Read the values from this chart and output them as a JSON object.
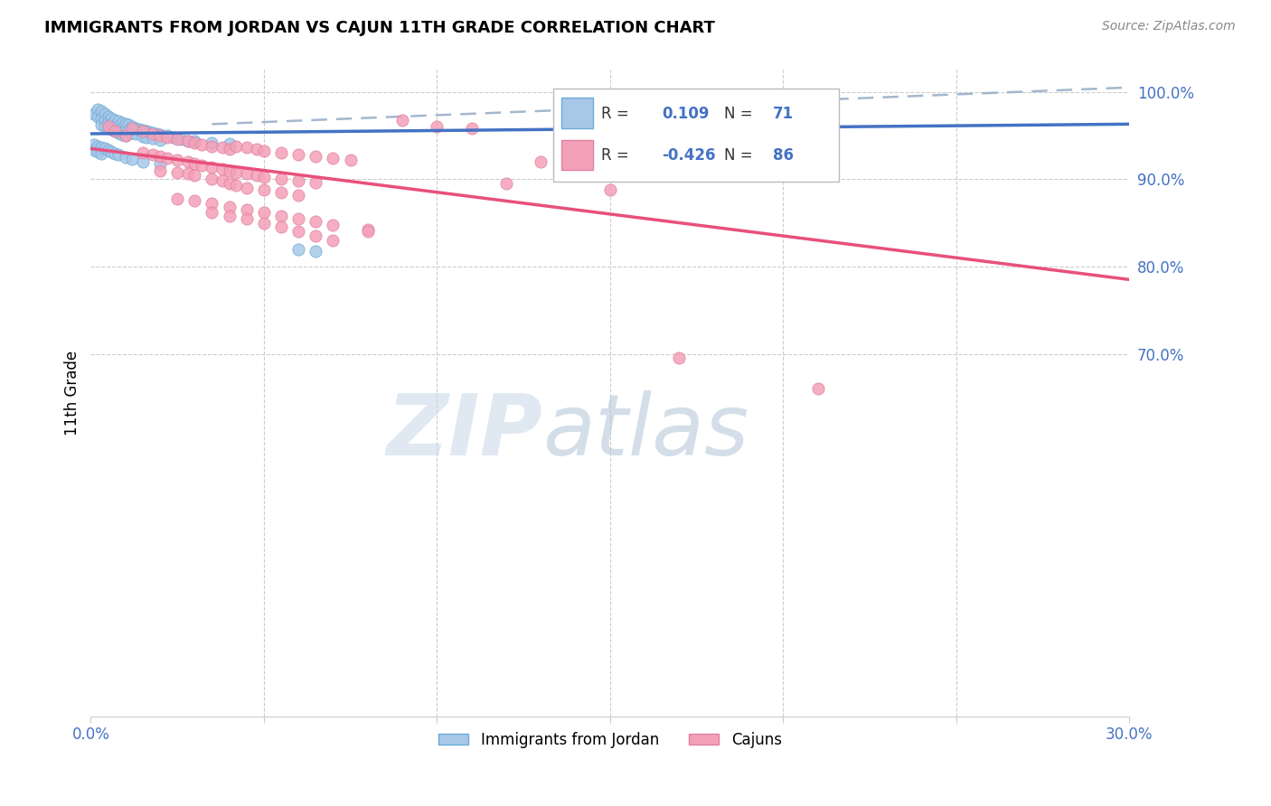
{
  "title": "IMMIGRANTS FROM JORDAN VS CAJUN 11TH GRADE CORRELATION CHART",
  "source": "Source: ZipAtlas.com",
  "ylabel": "11th Grade",
  "xmin": 0.0,
  "xmax": 0.3,
  "ymin": 0.285,
  "ymax": 1.025,
  "ytick_vals": [
    0.7,
    0.8,
    0.9,
    1.0
  ],
  "ytick_labels": [
    "70.0%",
    "80.0%",
    "90.0%",
    "100.0%"
  ],
  "xtick_positions": [
    0.0,
    0.05,
    0.1,
    0.15,
    0.2,
    0.25,
    0.3
  ],
  "xtick_labels": [
    "0.0%",
    "",
    "",
    "",
    "",
    "",
    "30.0%"
  ],
  "blue_R": "0.109",
  "blue_N": "71",
  "pink_R": "-0.426",
  "pink_N": "86",
  "blue_color": "#a8c8e8",
  "pink_color": "#f4a0b8",
  "blue_line_color": "#4472c4",
  "pink_line_color": "#e8507a",
  "dashed_color": "#9ab0c8",
  "legend_label_blue": "Immigrants from Jordan",
  "legend_label_pink": "Cajuns",
  "blue_line_x": [
    0.0,
    0.3
  ],
  "blue_line_y": [
    0.952,
    0.963
  ],
  "pink_line_x": [
    0.0,
    0.3
  ],
  "pink_line_y": [
    0.935,
    0.785
  ],
  "dash_line_x": [
    0.035,
    0.3
  ],
  "dash_line_y": [
    0.963,
    1.005
  ],
  "blue_points": [
    [
      0.001,
      0.975
    ],
    [
      0.002,
      0.98
    ],
    [
      0.002,
      0.972
    ],
    [
      0.003,
      0.978
    ],
    [
      0.003,
      0.97
    ],
    [
      0.003,
      0.962
    ],
    [
      0.004,
      0.975
    ],
    [
      0.004,
      0.968
    ],
    [
      0.004,
      0.96
    ],
    [
      0.005,
      0.972
    ],
    [
      0.005,
      0.965
    ],
    [
      0.005,
      0.958
    ],
    [
      0.006,
      0.97
    ],
    [
      0.006,
      0.963
    ],
    [
      0.006,
      0.957
    ],
    [
      0.007,
      0.968
    ],
    [
      0.007,
      0.961
    ],
    [
      0.007,
      0.955
    ],
    [
      0.008,
      0.966
    ],
    [
      0.008,
      0.96
    ],
    [
      0.008,
      0.953
    ],
    [
      0.009,
      0.964
    ],
    [
      0.009,
      0.958
    ],
    [
      0.009,
      0.951
    ],
    [
      0.01,
      0.963
    ],
    [
      0.01,
      0.956
    ],
    [
      0.01,
      0.95
    ],
    [
      0.011,
      0.962
    ],
    [
      0.011,
      0.955
    ],
    [
      0.012,
      0.96
    ],
    [
      0.012,
      0.953
    ],
    [
      0.013,
      0.958
    ],
    [
      0.013,
      0.952
    ],
    [
      0.014,
      0.957
    ],
    [
      0.015,
      0.956
    ],
    [
      0.015,
      0.949
    ],
    [
      0.016,
      0.955
    ],
    [
      0.016,
      0.948
    ],
    [
      0.017,
      0.954
    ],
    [
      0.018,
      0.953
    ],
    [
      0.018,
      0.947
    ],
    [
      0.019,
      0.952
    ],
    [
      0.02,
      0.951
    ],
    [
      0.02,
      0.945
    ],
    [
      0.022,
      0.95
    ],
    [
      0.024,
      0.948
    ],
    [
      0.026,
      0.946
    ],
    [
      0.028,
      0.944
    ],
    [
      0.03,
      0.944
    ],
    [
      0.035,
      0.942
    ],
    [
      0.04,
      0.941
    ],
    [
      0.001,
      0.94
    ],
    [
      0.001,
      0.933
    ],
    [
      0.002,
      0.938
    ],
    [
      0.002,
      0.931
    ],
    [
      0.003,
      0.936
    ],
    [
      0.003,
      0.929
    ],
    [
      0.004,
      0.935
    ],
    [
      0.005,
      0.933
    ],
    [
      0.006,
      0.931
    ],
    [
      0.007,
      0.929
    ],
    [
      0.008,
      0.928
    ],
    [
      0.01,
      0.925
    ],
    [
      0.012,
      0.923
    ],
    [
      0.015,
      0.92
    ],
    [
      0.02,
      0.918
    ],
    [
      0.06,
      0.82
    ],
    [
      0.065,
      0.818
    ]
  ],
  "pink_points": [
    [
      0.005,
      0.96
    ],
    [
      0.007,
      0.955
    ],
    [
      0.01,
      0.95
    ],
    [
      0.012,
      0.958
    ],
    [
      0.015,
      0.955
    ],
    [
      0.018,
      0.952
    ],
    [
      0.02,
      0.95
    ],
    [
      0.022,
      0.948
    ],
    [
      0.025,
      0.946
    ],
    [
      0.028,
      0.944
    ],
    [
      0.03,
      0.942
    ],
    [
      0.032,
      0.94
    ],
    [
      0.035,
      0.938
    ],
    [
      0.038,
      0.936
    ],
    [
      0.04,
      0.934
    ],
    [
      0.042,
      0.938
    ],
    [
      0.045,
      0.936
    ],
    [
      0.048,
      0.934
    ],
    [
      0.05,
      0.932
    ],
    [
      0.055,
      0.93
    ],
    [
      0.06,
      0.928
    ],
    [
      0.065,
      0.926
    ],
    [
      0.07,
      0.924
    ],
    [
      0.075,
      0.922
    ],
    [
      0.015,
      0.93
    ],
    [
      0.018,
      0.928
    ],
    [
      0.02,
      0.926
    ],
    [
      0.022,
      0.924
    ],
    [
      0.025,
      0.922
    ],
    [
      0.028,
      0.92
    ],
    [
      0.03,
      0.918
    ],
    [
      0.032,
      0.916
    ],
    [
      0.035,
      0.914
    ],
    [
      0.038,
      0.912
    ],
    [
      0.04,
      0.91
    ],
    [
      0.042,
      0.908
    ],
    [
      0.045,
      0.906
    ],
    [
      0.048,
      0.904
    ],
    [
      0.05,
      0.902
    ],
    [
      0.055,
      0.9
    ],
    [
      0.06,
      0.898
    ],
    [
      0.065,
      0.896
    ],
    [
      0.02,
      0.91
    ],
    [
      0.025,
      0.908
    ],
    [
      0.028,
      0.906
    ],
    [
      0.03,
      0.904
    ],
    [
      0.035,
      0.9
    ],
    [
      0.038,
      0.898
    ],
    [
      0.04,
      0.895
    ],
    [
      0.042,
      0.893
    ],
    [
      0.045,
      0.89
    ],
    [
      0.05,
      0.888
    ],
    [
      0.055,
      0.885
    ],
    [
      0.06,
      0.882
    ],
    [
      0.025,
      0.878
    ],
    [
      0.03,
      0.875
    ],
    [
      0.035,
      0.872
    ],
    [
      0.04,
      0.868
    ],
    [
      0.045,
      0.865
    ],
    [
      0.05,
      0.862
    ],
    [
      0.055,
      0.858
    ],
    [
      0.06,
      0.855
    ],
    [
      0.065,
      0.852
    ],
    [
      0.07,
      0.848
    ],
    [
      0.08,
      0.842
    ],
    [
      0.035,
      0.862
    ],
    [
      0.04,
      0.858
    ],
    [
      0.045,
      0.855
    ],
    [
      0.05,
      0.85
    ],
    [
      0.055,
      0.845
    ],
    [
      0.06,
      0.84
    ],
    [
      0.065,
      0.835
    ],
    [
      0.07,
      0.83
    ],
    [
      0.08,
      0.84
    ],
    [
      0.09,
      0.968
    ],
    [
      0.1,
      0.96
    ],
    [
      0.11,
      0.958
    ],
    [
      0.12,
      0.895
    ],
    [
      0.13,
      0.92
    ],
    [
      0.15,
      0.888
    ],
    [
      0.165,
      0.912
    ],
    [
      0.2,
      0.93
    ],
    [
      0.17,
      0.695
    ],
    [
      0.21,
      0.66
    ]
  ]
}
